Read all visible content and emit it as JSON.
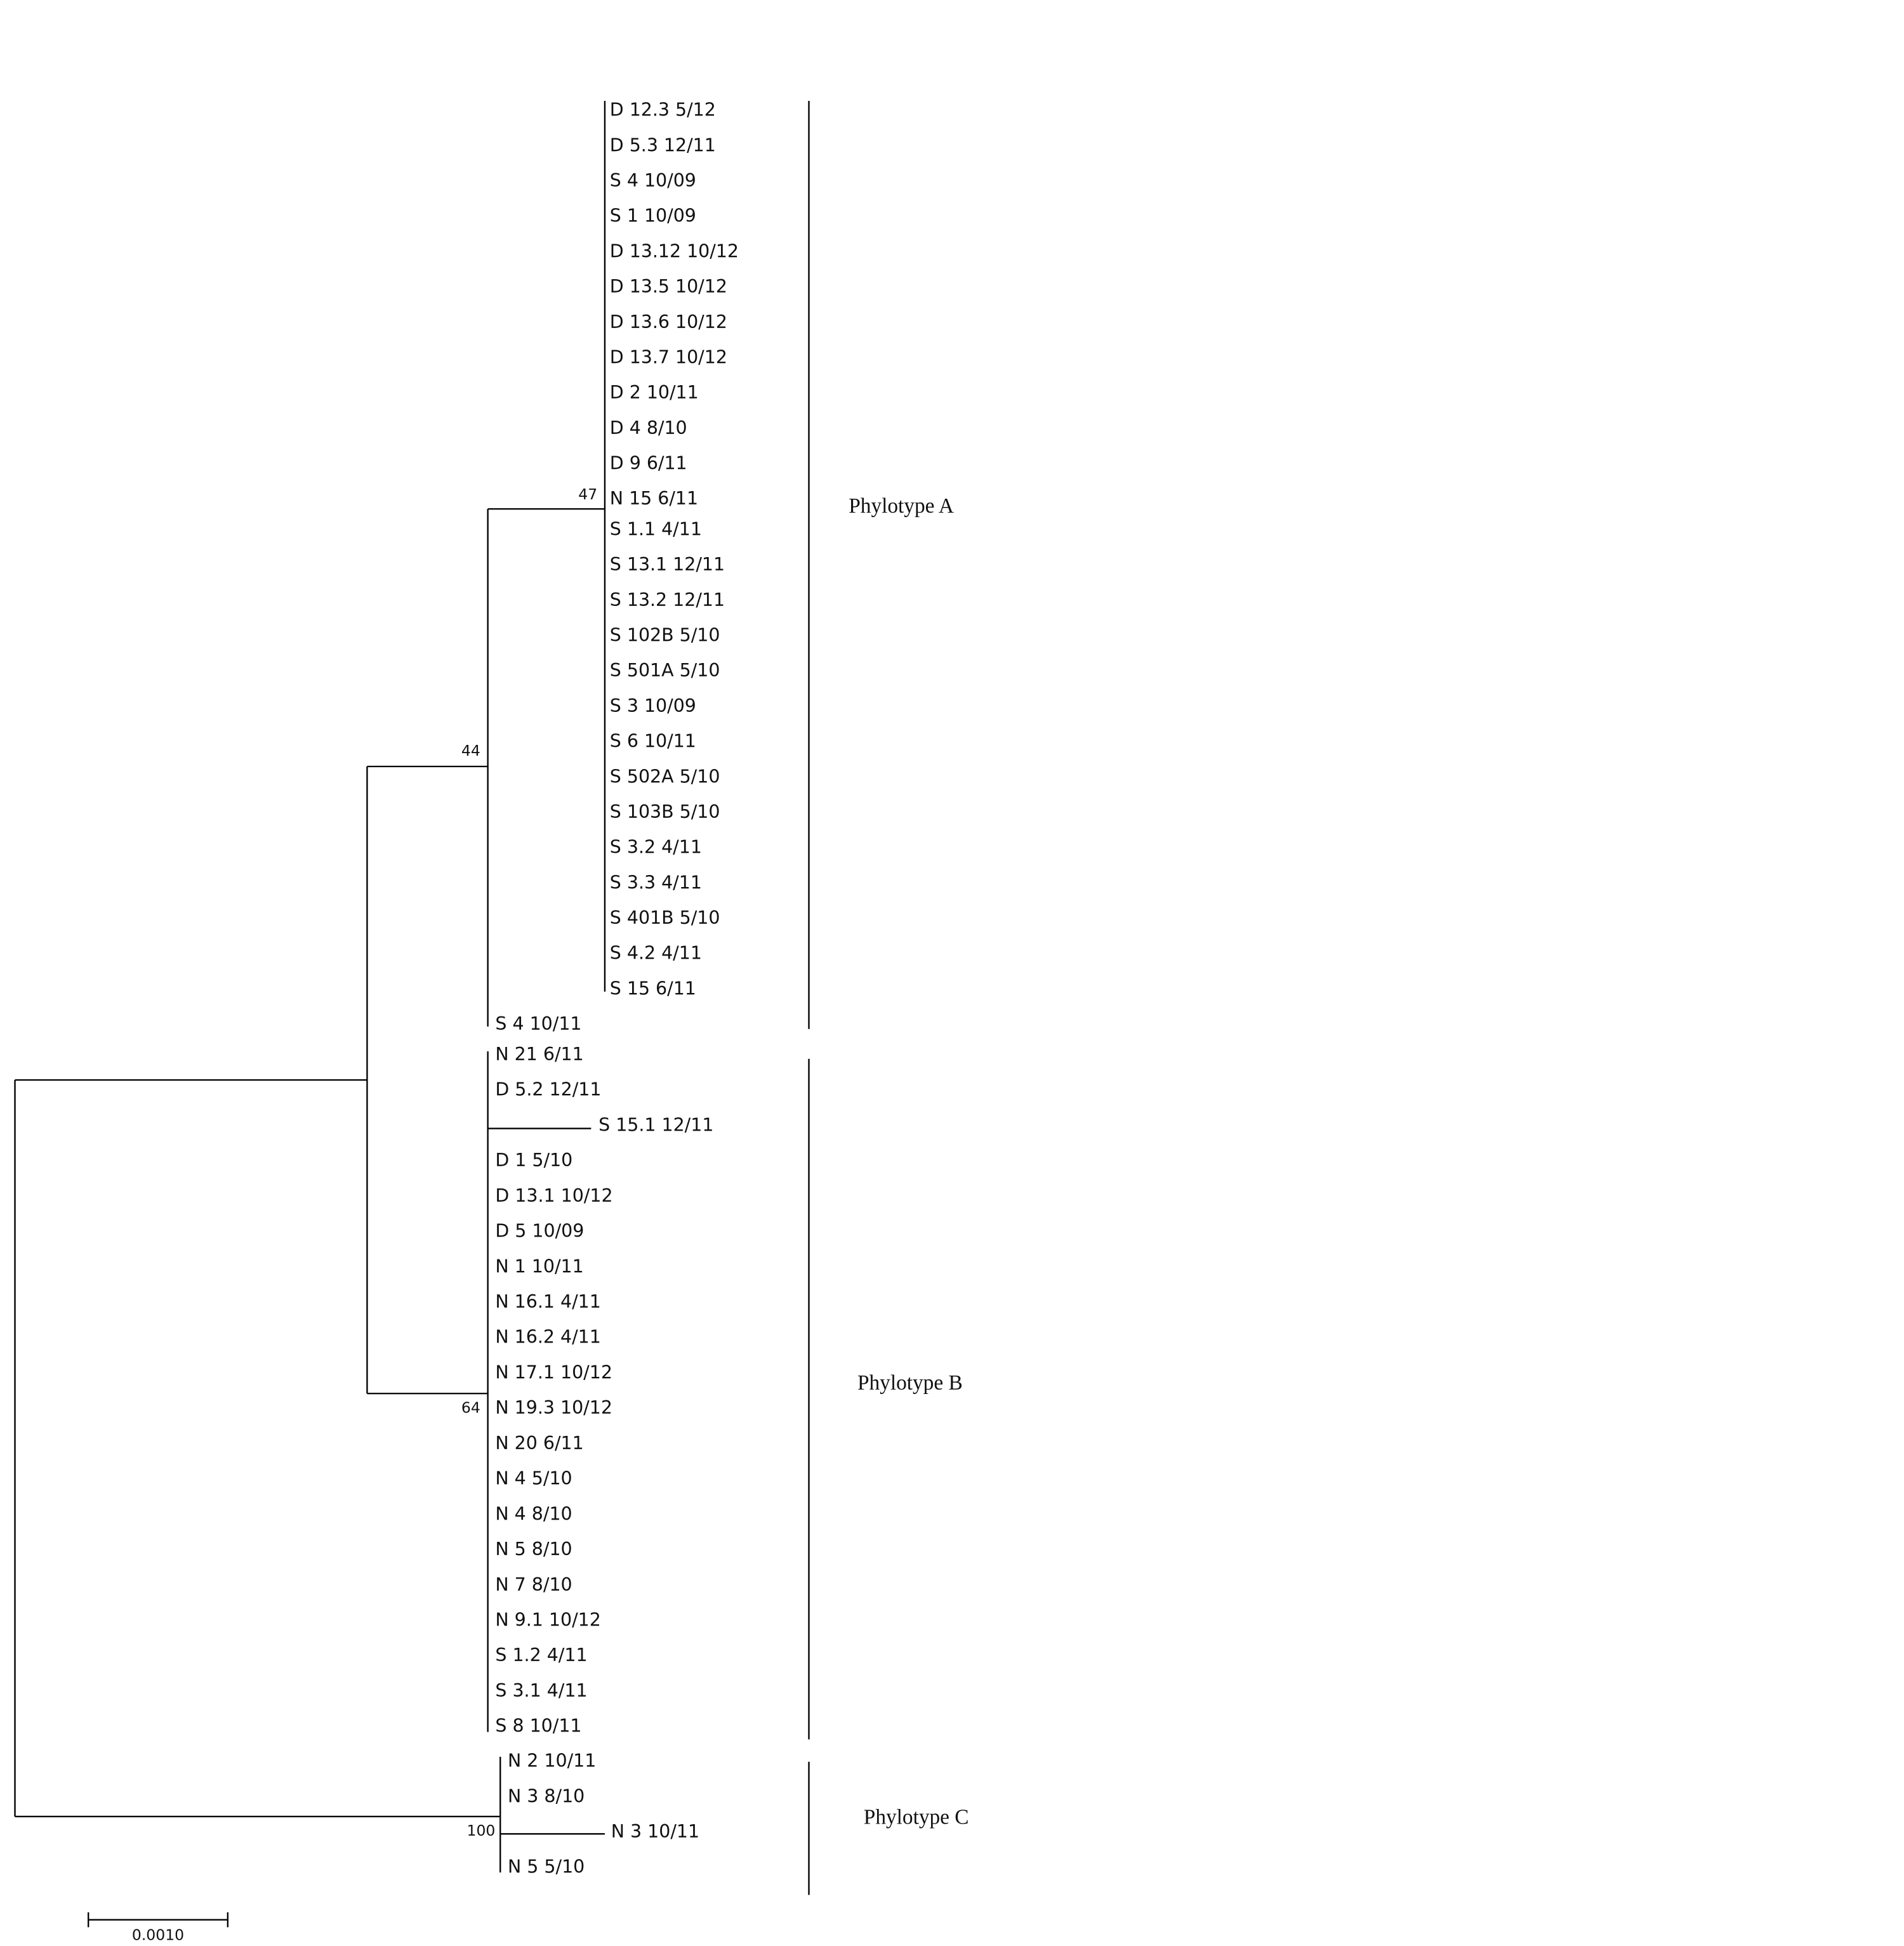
{
  "leaves": [
    "D 12.3 5/12",
    "D 5.3 12/11",
    "S 4 10/09",
    "S 1 10/09",
    "D 13.12 10/12",
    "D 13.5 10/12",
    "D 13.6 10/12",
    "D 13.7 10/12",
    "D 2 10/11",
    "D 4 8/10",
    "D 9 6/11",
    "N 15 6/11",
    "S 1.1 4/11",
    "S 13.1 12/11",
    "S 13.2 12/11",
    "S 102B 5/10",
    "S 501A 5/10",
    "S 3 10/09",
    "S 6 10/11",
    "S 502A 5/10",
    "S 103B 5/10",
    "S 3.2 4/11",
    "S 3.3 4/11",
    "S 401B 5/10",
    "S 4.2 4/11",
    "S 15 6/11",
    "S 4 10/11",
    "N 21 6/11",
    "D 5.2 12/11",
    "S 15.1 12/11",
    "D 1 5/10",
    "D 13.1 10/12",
    "D 5 10/09",
    "N 1 10/11",
    "N 16.1 4/11",
    "N 16.2 4/11",
    "N 17.1 10/12",
    "N 19.3 10/12",
    "N 20 6/11",
    "N 4 5/10",
    "N 4 8/10",
    "N 5 8/10",
    "N 7 8/10",
    "N 9.1 10/12",
    "S 1.2 4/11",
    "S 3.1 4/11",
    "S 8 10/11",
    "N 2 10/11",
    "N 3 8/10",
    "N 3 10/11",
    "N 5 5/10"
  ],
  "bootstrap": [
    "47",
    "44",
    "64",
    "100"
  ],
  "clades": [
    "Phylotype A",
    "Phylotype B",
    "Phylotype C"
  ],
  "scale_bar": "0.0010"
}
